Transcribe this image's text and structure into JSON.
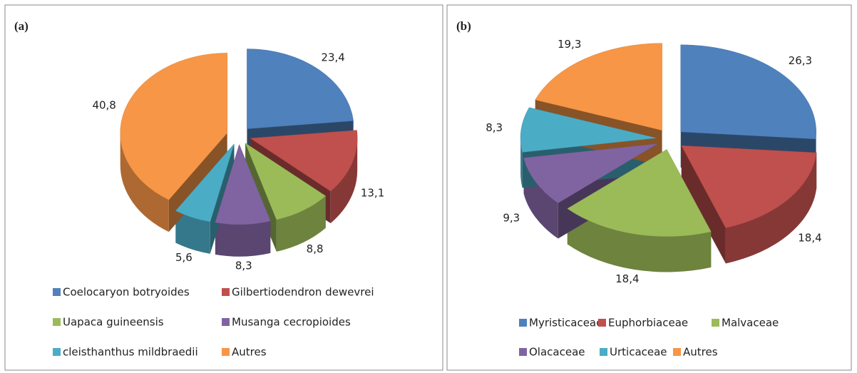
{
  "chart_data": [
    {
      "type": "pie3d",
      "label": "(a)",
      "categories": [
        "Coelocaryon botryoides",
        "Gilbertiodendron dewevrei",
        "Uapaca guineensis",
        "Musanga cecropioides",
        "cleisthanthus mildbraedii",
        "Autres"
      ],
      "values": [
        23.4,
        13.1,
        8.8,
        8.3,
        5.6,
        40.8
      ],
      "value_labels": [
        "23,4",
        "13,1",
        "8,8",
        "8,3",
        "5,6",
        "40,8"
      ],
      "colors": [
        "#4f81bd",
        "#c0504d",
        "#9bbb59",
        "#8064a2",
        "#4bacc6",
        "#f79646"
      ]
    },
    {
      "type": "pie3d",
      "label": "(b)",
      "categories": [
        "Myristicaceae",
        "Euphorbiaceae",
        "Malvaceae",
        "Olacaceae",
        "Urticaceae",
        "Autres"
      ],
      "values": [
        26.3,
        18.4,
        18.4,
        9.3,
        8.3,
        19.3
      ],
      "value_labels": [
        "26,3",
        "18,4",
        "18,4",
        "9,3",
        "8,3",
        "19,3"
      ],
      "colors": [
        "#4f81bd",
        "#c0504d",
        "#9bbb59",
        "#8064a2",
        "#4bacc6",
        "#f79646"
      ]
    }
  ]
}
